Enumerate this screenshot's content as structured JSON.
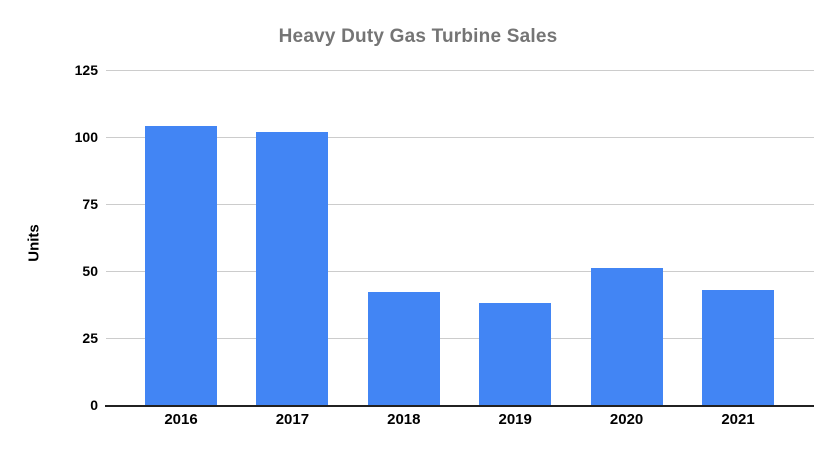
{
  "chart_data": {
    "type": "bar",
    "title": "Heavy Duty Gas Turbine Sales",
    "xlabel": "",
    "ylabel": "Units",
    "categories": [
      "2016",
      "2017",
      "2018",
      "2019",
      "2020",
      "2021"
    ],
    "values": [
      104,
      102,
      42,
      38,
      51,
      43
    ],
    "ylim": [
      0,
      125
    ],
    "yticks": [
      0,
      25,
      50,
      75,
      100,
      125
    ],
    "grid": true,
    "legend_position": "none"
  },
  "colors": {
    "bar": "#4285F4",
    "title_text": "#757575",
    "axis_label_text": "#000000",
    "gridline": "#cccccc",
    "axis_line": "#212121",
    "background": "#ffffff"
  }
}
